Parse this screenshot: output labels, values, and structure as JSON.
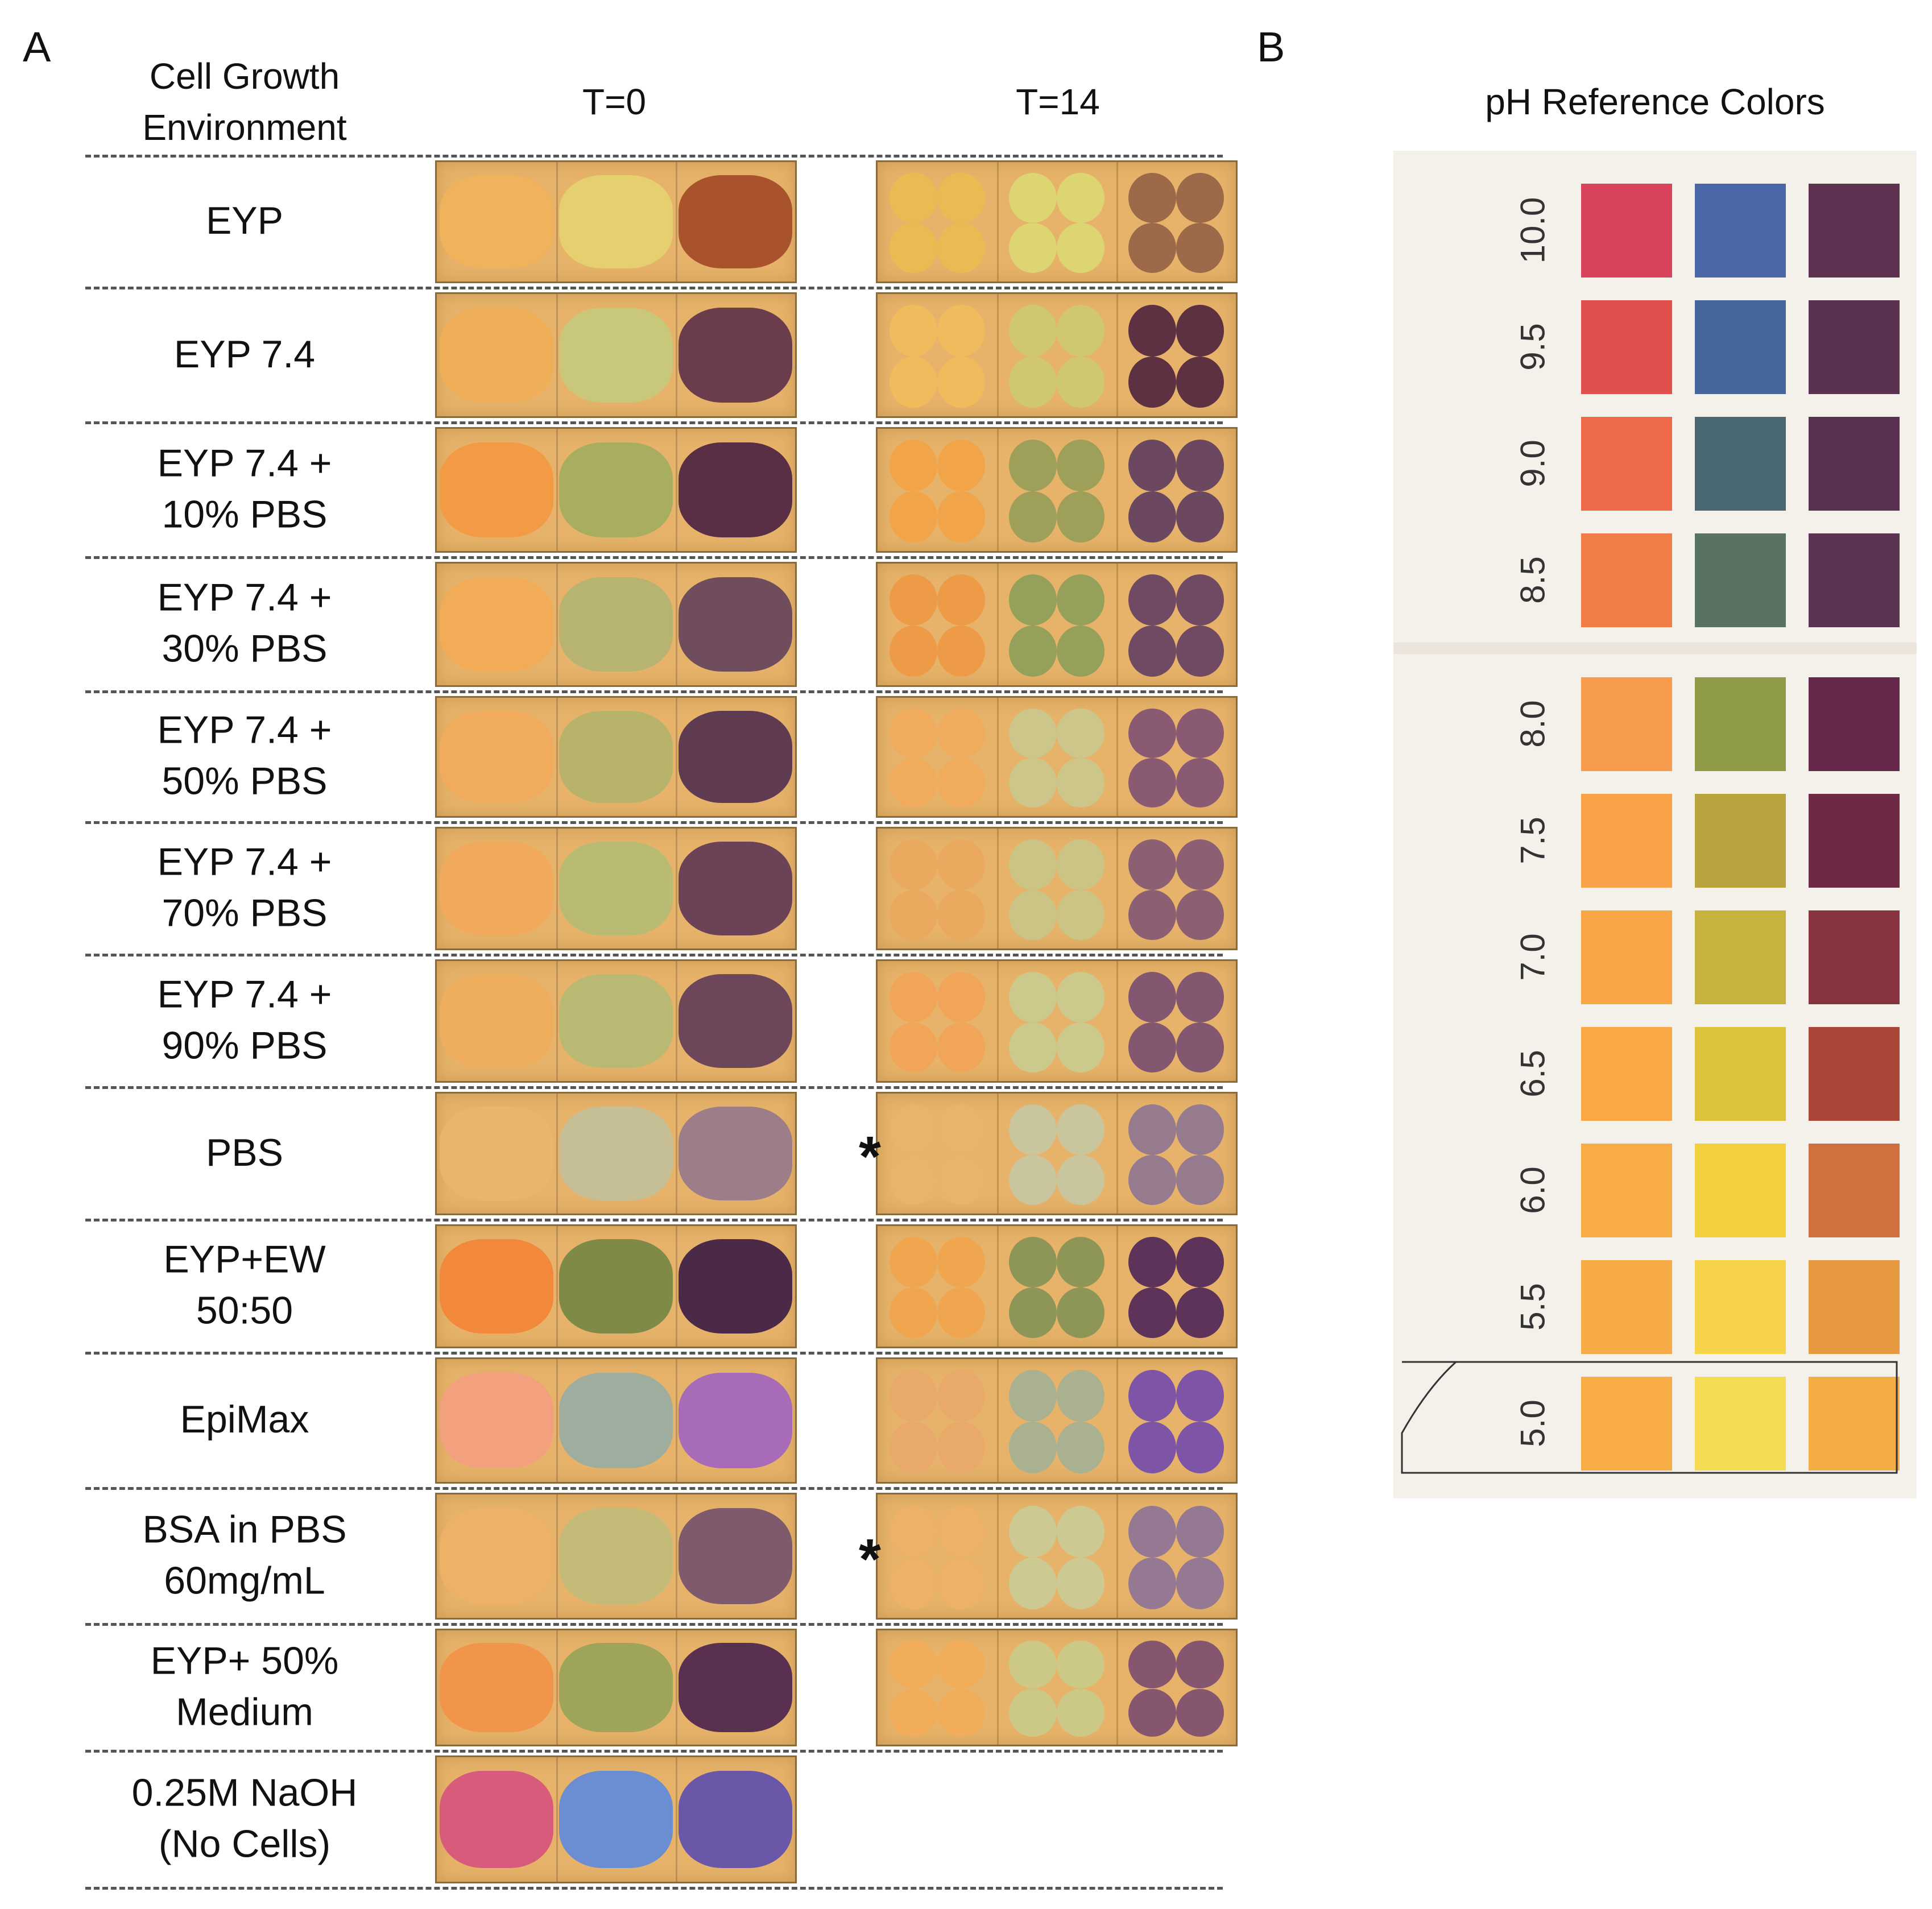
{
  "panels": {
    "a_label": "A",
    "b_label": "B"
  },
  "headers": {
    "environment": "Cell Growth\nEnvironment",
    "t0": "T=0",
    "t14": "T=14",
    "reference": "pH Reference Colors"
  },
  "rows": [
    {
      "label": "EYP",
      "t0": [
        "#f0b25a",
        "#e5cf6f",
        "#a8532c"
      ],
      "t14": [
        "#e9bb52",
        "#dcd572",
        "#9c6a48"
      ]
    },
    {
      "label": "EYP 7.4",
      "t0": [
        "#f0ae58",
        "#c9c77a",
        "#6b3c4b"
      ],
      "t14": [
        "#f0bb5c",
        "#cfc870",
        "#5d3042"
      ]
    },
    {
      "label": "EYP 7.4 +\n10% PBS",
      "t0": [
        "#f39a45",
        "#a9ad60",
        "#5a2e44"
      ],
      "t14": [
        "#f2a448",
        "#9ea05a",
        "#6b4860"
      ]
    },
    {
      "label": "EYP 7.4 +\n30% PBS",
      "t0": [
        "#f2ab56",
        "#b6b470",
        "#6f4d5c"
      ],
      "t14": [
        "#ee9b48",
        "#95a05a",
        "#6f4a62"
      ]
    },
    {
      "label": "EYP 7.4 +\n50% PBS",
      "t0": [
        "#f0ab5c",
        "#b8b36a",
        "#5f3b52"
      ],
      "t14": [
        "#f1ab5c",
        "#ccc68a",
        "#8a5a72"
      ]
    },
    {
      "label": "EYP 7.4 +\n70% PBS",
      "t0": [
        "#f1aa5c",
        "#babb72",
        "#6c4256"
      ],
      "t14": [
        "#eaa95f",
        "#cbc485",
        "#8c6072"
      ]
    },
    {
      "label": "EYP 7.4 +\n90% PBS",
      "t0": [
        "#efae5e",
        "#b9b974",
        "#6d4659"
      ],
      "t14": [
        "#f1a559",
        "#cbc98c",
        "#845771"
      ]
    },
    {
      "label": "PBS",
      "t0": [
        "#e9b46c",
        "#c6bf96",
        "#9c7d88"
      ],
      "t14": [
        "#e8b36a",
        "#c9c59c",
        "#967a8e"
      ]
    },
    {
      "label": "EYP+EW\n50:50",
      "t0": [
        "#f2893a",
        "#7e8a46",
        "#4b2a48"
      ],
      "t14": [
        "#f0a54f",
        "#8d9656",
        "#5d335a"
      ]
    },
    {
      "label": "EpiMax",
      "t0": [
        "#f2a07e",
        "#9fad9e",
        "#a86bb7"
      ],
      "t14": [
        "#e8a96b",
        "#a9b190",
        "#7e55a6"
      ]
    },
    {
      "label": "BSA in PBS\n60mg/mL",
      "t0": [
        "#eeb168",
        "#c5bb78",
        "#7f5a6c"
      ],
      "t14": [
        "#eeb168",
        "#ccca92",
        "#957892"
      ]
    },
    {
      "label": "EYP+ 50%\nMedium",
      "t0": [
        "#f0954a",
        "#9ea45a",
        "#5a3050"
      ],
      "t14": [
        "#f2ad5a",
        "#cbc985",
        "#86566e"
      ]
    },
    {
      "label": "0.25M NaOH\n(No Cells)",
      "t0": [
        "#d75c7b",
        "#6a8ed1",
        "#6a57a8"
      ],
      "t14": []
    }
  ],
  "stars": {
    "row_pbs": "*",
    "row_bsa": "*"
  },
  "reference": {
    "alkaline": [
      {
        "ph": "10.0",
        "colors": [
          "#d8425a",
          "#4a67a8",
          "#5e3150"
        ]
      },
      {
        "ph": "9.5",
        "colors": [
          "#e0504c",
          "#45679b",
          "#5b3150"
        ]
      },
      {
        "ph": "9.0",
        "colors": [
          "#ee6a48",
          "#4a6873",
          "#5a3050"
        ]
      },
      {
        "ph": "8.5",
        "colors": [
          "#f07d47",
          "#5a7260",
          "#5a3450"
        ]
      }
    ],
    "acidic": [
      {
        "ph": "8.0",
        "colors": [
          "#f69a4b",
          "#8e9a45",
          "#64294a"
        ]
      },
      {
        "ph": "7.5",
        "colors": [
          "#f8a247",
          "#b8a33e",
          "#6e2a44"
        ]
      },
      {
        "ph": "7.0",
        "colors": [
          "#f9a646",
          "#c6b23c",
          "#883440"
        ]
      },
      {
        "ph": "6.5",
        "colors": [
          "#f8a946",
          "#dcc33a",
          "#a94638"
        ]
      },
      {
        "ph": "6.0",
        "colors": [
          "#f7ac46",
          "#f2d040",
          "#d0703d"
        ]
      },
      {
        "ph": "5.5",
        "colors": [
          "#f7ab46",
          "#f6d349",
          "#e69940"
        ]
      },
      {
        "ph": "5.0",
        "colors": [
          "#f8ac45",
          "#f6dc55",
          "#f4ac45"
        ]
      }
    ]
  }
}
